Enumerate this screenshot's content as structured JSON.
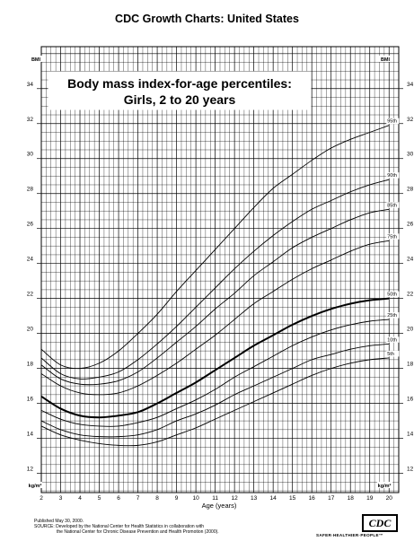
{
  "page": {
    "header": "CDC Growth Charts: United States",
    "footer": {
      "published": "Published May 30, 2000.",
      "source_line1": "SOURCE: Developed by the National Center for Health Statistics in collaboration with",
      "source_line2": "the National Center for Chronic Disease Prevention and Health Promotion (2000)."
    },
    "logo": "CDC",
    "slogan": "SAFER·HEALTHIER·PEOPLE™"
  },
  "chart_data": {
    "type": "line",
    "title_line1": "Body mass index-for-age percentiles:",
    "title_line2": "Girls, 2 to 20 years",
    "xlabel": "Age (years)",
    "ylabel_top": "BMI",
    "ylabel_bottom": "kg/m²",
    "xlim": [
      2,
      20.5
    ],
    "ylim": [
      10.9,
      36.4
    ],
    "x_ticks": [
      2,
      3,
      4,
      5,
      6,
      7,
      8,
      9,
      10,
      11,
      12,
      13,
      14,
      15,
      16,
      17,
      18,
      19,
      20
    ],
    "y_ticks": [
      12,
      14,
      16,
      18,
      20,
      22,
      24,
      26,
      28,
      30,
      32,
      34
    ],
    "grid": true,
    "x": [
      2,
      3,
      4,
      5,
      6,
      7,
      8,
      9,
      10,
      11,
      12,
      13,
      14,
      15,
      16,
      17,
      18,
      19,
      20
    ],
    "series": [
      {
        "name": "95th",
        "values": [
          19.1,
          18.2,
          18.0,
          18.3,
          19.0,
          20.0,
          21.1,
          22.4,
          23.6,
          24.8,
          26.0,
          27.2,
          28.3,
          29.1,
          29.9,
          30.6,
          31.1,
          31.5,
          31.9
        ]
      },
      {
        "name": "90th",
        "values": [
          18.6,
          17.7,
          17.4,
          17.5,
          17.8,
          18.5,
          19.4,
          20.4,
          21.5,
          22.6,
          23.7,
          24.7,
          25.6,
          26.4,
          27.1,
          27.6,
          28.1,
          28.5,
          28.8
        ]
      },
      {
        "name": "85th",
        "values": [
          18.2,
          17.4,
          17.1,
          17.1,
          17.3,
          17.8,
          18.6,
          19.5,
          20.4,
          21.4,
          22.3,
          23.3,
          24.1,
          24.9,
          25.5,
          26.0,
          26.5,
          26.9,
          27.1
        ]
      },
      {
        "name": "75th",
        "values": [
          17.7,
          17.0,
          16.6,
          16.5,
          16.6,
          17.0,
          17.6,
          18.3,
          19.1,
          19.9,
          20.8,
          21.7,
          22.4,
          23.1,
          23.7,
          24.2,
          24.7,
          25.1,
          25.3
        ]
      },
      {
        "name": "50th",
        "values": [
          16.4,
          15.7,
          15.3,
          15.2,
          15.3,
          15.5,
          16.0,
          16.6,
          17.2,
          17.9,
          18.6,
          19.3,
          19.9,
          20.5,
          21.0,
          21.4,
          21.7,
          21.9,
          22.0
        ]
      },
      {
        "name": "25th",
        "values": [
          15.6,
          15.1,
          14.8,
          14.7,
          14.7,
          14.9,
          15.2,
          15.7,
          16.2,
          16.8,
          17.5,
          18.1,
          18.7,
          19.3,
          19.8,
          20.2,
          20.5,
          20.7,
          20.8
        ]
      },
      {
        "name": "10th",
        "values": [
          15.0,
          14.5,
          14.2,
          14.1,
          14.1,
          14.2,
          14.5,
          15.0,
          15.4,
          15.9,
          16.5,
          17.0,
          17.5,
          18.0,
          18.5,
          18.8,
          19.1,
          19.3,
          19.4
        ]
      },
      {
        "name": "5th",
        "values": [
          14.7,
          14.2,
          13.9,
          13.7,
          13.6,
          13.6,
          13.8,
          14.2,
          14.6,
          15.1,
          15.6,
          16.1,
          16.6,
          17.1,
          17.6,
          18.0,
          18.3,
          18.5,
          18.6
        ]
      }
    ],
    "emphasized_series": "50th"
  }
}
